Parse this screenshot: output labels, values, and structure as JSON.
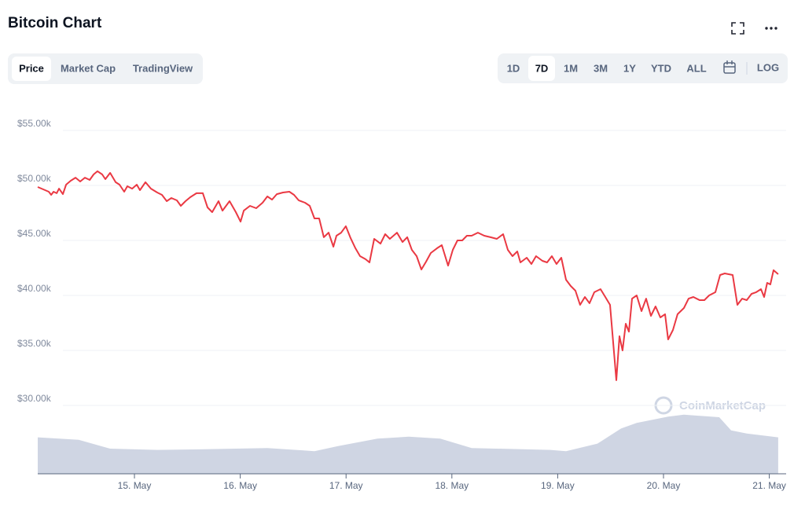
{
  "chart_data": {
    "type": "line",
    "title": "Bitcoin Chart",
    "tabs": [
      "Price",
      "Market Cap",
      "TradingView"
    ],
    "active_tab": "Price",
    "ranges": [
      "1D",
      "7D",
      "1M",
      "3M",
      "1Y",
      "YTD",
      "ALL"
    ],
    "active_range": "7D",
    "log_button": "LOG",
    "watermark": "CoinMarketCap",
    "color": "#ea3943",
    "volume_color": "#cfd5e3",
    "grid": true,
    "xlim": [
      14.086,
      21.107
    ],
    "xticks": [
      {
        "value": 15,
        "label": "15. May"
      },
      {
        "value": 16,
        "label": "16. May"
      },
      {
        "value": 17,
        "label": "17. May"
      },
      {
        "value": 18,
        "label": "18. May"
      },
      {
        "value": 19,
        "label": "19. May"
      },
      {
        "value": 20,
        "label": "20. May"
      },
      {
        "value": 21,
        "label": "21. May"
      }
    ],
    "ylim": [
      30000,
      55000
    ],
    "yticks": [
      {
        "value": 30000,
        "label": "$30.00k"
      },
      {
        "value": 35000,
        "label": "$35.00k"
      },
      {
        "value": 40000,
        "label": "$40.00k"
      },
      {
        "value": 45000,
        "label": "$45.00k"
      },
      {
        "value": 50000,
        "label": "$50.00k"
      },
      {
        "value": 55000,
        "label": "$55.00k"
      }
    ],
    "y2lim": [
      0,
      100
    ],
    "x": [
      14.086,
      14.138,
      14.19,
      14.213,
      14.235,
      14.265,
      14.287,
      14.324,
      14.354,
      14.398,
      14.443,
      14.487,
      14.532,
      14.577,
      14.614,
      14.651,
      14.695,
      14.725,
      14.77,
      14.822,
      14.859,
      14.903,
      14.933,
      14.978,
      15.022,
      15.052,
      15.104,
      15.156,
      15.215,
      15.26,
      15.305,
      15.349,
      15.401,
      15.438,
      15.483,
      15.527,
      15.587,
      15.646,
      15.691,
      15.735,
      15.795,
      15.832,
      15.899,
      15.958,
      16.003,
      16.033,
      16.092,
      16.151,
      16.211,
      16.256,
      16.3,
      16.345,
      16.404,
      16.464,
      16.508,
      16.553,
      16.612,
      16.657,
      16.701,
      16.746,
      16.79,
      16.835,
      16.88,
      16.909,
      16.954,
      16.998,
      17.043,
      17.088,
      17.132,
      17.184,
      17.221,
      17.266,
      17.325,
      17.37,
      17.414,
      17.481,
      17.533,
      17.578,
      17.622,
      17.667,
      17.712,
      17.756,
      17.801,
      17.86,
      17.905,
      17.964,
      18.009,
      18.053,
      18.098,
      18.142,
      18.187,
      18.246,
      18.306,
      18.365,
      18.425,
      18.484,
      18.529,
      18.573,
      18.618,
      18.648,
      18.707,
      18.752,
      18.796,
      18.856,
      18.9,
      18.945,
      18.989,
      19.034,
      19.079,
      19.123,
      19.168,
      19.212,
      19.257,
      19.301,
      19.346,
      19.405,
      19.45,
      19.495,
      19.554,
      19.584,
      19.613,
      19.643,
      19.673,
      19.703,
      19.747,
      19.792,
      19.836,
      19.881,
      19.925,
      19.97,
      20.015,
      20.044,
      20.089,
      20.133,
      20.193,
      20.237,
      20.282,
      20.341,
      20.386,
      20.431,
      20.49,
      20.535,
      20.579,
      20.654,
      20.698,
      20.743,
      20.787,
      20.832,
      20.876,
      20.921,
      20.951,
      20.98,
      21.01,
      21.04,
      21.084
    ],
    "values": [
      49860,
      49640,
      49430,
      49140,
      49430,
      49290,
      49710,
      49210,
      50070,
      50430,
      50710,
      50360,
      50710,
      50500,
      51000,
      51290,
      51000,
      50570,
      51140,
      50290,
      50070,
      49430,
      49930,
      49710,
      50070,
      49570,
      50290,
      49710,
      49360,
      49140,
      48570,
      48860,
      48640,
      48140,
      48570,
      48930,
      49290,
      49290,
      48000,
      47570,
      48570,
      47710,
      48570,
      47570,
      46710,
      47710,
      48140,
      47930,
      48430,
      49000,
      48710,
      49210,
      49360,
      49430,
      49140,
      48640,
      48430,
      48140,
      47000,
      47000,
      45290,
      45710,
      44430,
      45430,
      45710,
      46290,
      45210,
      44290,
      43570,
      43290,
      43000,
      45140,
      44710,
      45570,
      45140,
      45710,
      44860,
      45290,
      44140,
      43570,
      42360,
      43070,
      43860,
      44290,
      44570,
      42710,
      44140,
      45000,
      45000,
      45430,
      45430,
      45710,
      45430,
      45290,
      45140,
      45570,
      44140,
      43570,
      44000,
      43000,
      43430,
      42860,
      43570,
      43140,
      43000,
      43570,
      42860,
      43430,
      41430,
      40860,
      40430,
      39140,
      39860,
      39290,
      40290,
      40570,
      39860,
      39140,
      32290,
      36290,
      35000,
      37430,
      36710,
      39710,
      40000,
      38570,
      39710,
      38140,
      39000,
      38000,
      38290,
      36000,
      36860,
      38290,
      38860,
      39710,
      39860,
      39570,
      39570,
      40000,
      40290,
      41860,
      42000,
      41860,
      39140,
      39710,
      39570,
      40140,
      40290,
      40570,
      39860,
      41140,
      41000,
      42290,
      41930
    ],
    "volume": {
      "axis": "y2",
      "x": [
        14.086,
        14.473,
        14.77,
        15.215,
        15.661,
        16.256,
        16.701,
        16.924,
        17.296,
        17.593,
        17.89,
        18.187,
        18.93,
        19.079,
        19.376,
        19.599,
        19.747,
        20.044,
        20.193,
        20.527,
        20.639,
        20.787,
        21.084
      ],
      "values": [
        58,
        54,
        40,
        38,
        39,
        41,
        36,
        44,
        56,
        59,
        56,
        41,
        38,
        36,
        48,
        72,
        81,
        91,
        94,
        90,
        69,
        64,
        58
      ]
    }
  }
}
